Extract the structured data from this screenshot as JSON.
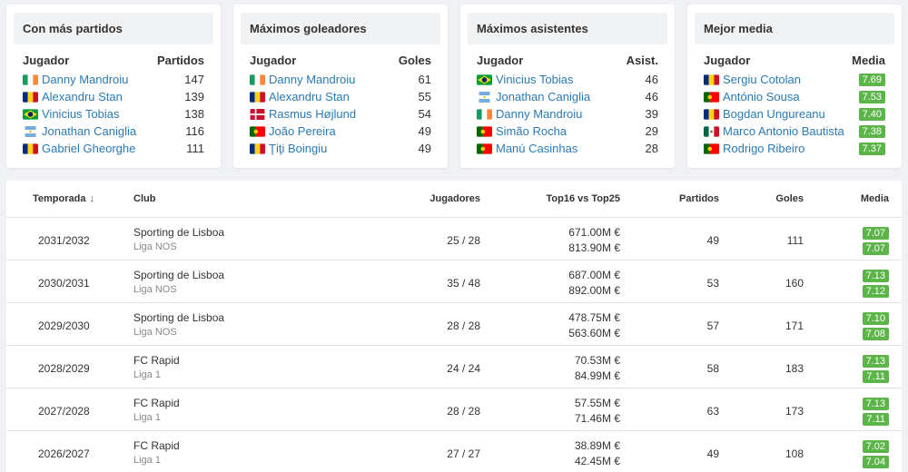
{
  "cards": [
    {
      "title": "Con más partidos",
      "col_left": "Jugador",
      "col_right": "Partidos",
      "value_type": "plain",
      "rows": [
        {
          "flag": "ireland-flag",
          "name": "Danny Mandroiu",
          "value": "147"
        },
        {
          "flag": "romania-flag",
          "name": "Alexandru Stan",
          "value": "139"
        },
        {
          "flag": "brazil-flag",
          "name": "Vinicius Tobias",
          "value": "138"
        },
        {
          "flag": "argentina-flag",
          "name": "Jonathan Caniglia",
          "value": "116"
        },
        {
          "flag": "romania-flag",
          "name": "Gabriel Gheorghe",
          "value": "111"
        }
      ]
    },
    {
      "title": "Máximos goleadores",
      "col_left": "Jugador",
      "col_right": "Goles",
      "value_type": "plain",
      "rows": [
        {
          "flag": "ireland-flag",
          "name": "Danny Mandroiu",
          "value": "61"
        },
        {
          "flag": "romania-flag",
          "name": "Alexandru Stan",
          "value": "55"
        },
        {
          "flag": "denmark-flag",
          "name": "Rasmus Højlund",
          "value": "54"
        },
        {
          "flag": "portugal-flag",
          "name": "João Pereira",
          "value": "49"
        },
        {
          "flag": "romania-flag",
          "name": "Ţiţi Boingiu",
          "value": "49"
        }
      ]
    },
    {
      "title": "Máximos asistentes",
      "col_left": "Jugador",
      "col_right": "Asist.",
      "value_type": "plain",
      "rows": [
        {
          "flag": "brazil-flag",
          "name": "Vinicius Tobias",
          "value": "46"
        },
        {
          "flag": "argentina-flag",
          "name": "Jonathan Caniglia",
          "value": "46"
        },
        {
          "flag": "ireland-flag",
          "name": "Danny Mandroiu",
          "value": "39"
        },
        {
          "flag": "portugal-flag",
          "name": "Simão Rocha",
          "value": "29"
        },
        {
          "flag": "portugal-flag",
          "name": "Manú Casinhas",
          "value": "28"
        }
      ]
    },
    {
      "title": "Mejor media",
      "col_left": "Jugador",
      "col_right": "Media",
      "value_type": "badge",
      "rows": [
        {
          "flag": "romania-flag",
          "name": "Sergiu Cotolan",
          "value": "7.69"
        },
        {
          "flag": "portugal-flag",
          "name": "António Sousa",
          "value": "7.53"
        },
        {
          "flag": "romania-flag",
          "name": "Bogdan Ungureanu",
          "value": "7.40"
        },
        {
          "flag": "mexico-flag",
          "name": "Marco Antonio Bautista",
          "value": "7.38"
        },
        {
          "flag": "portugal-flag",
          "name": "Rodrigo Ribeiro",
          "value": "7.37"
        }
      ]
    }
  ],
  "table": {
    "headers": {
      "season": "Temporada",
      "club": "Club",
      "players": "Jugadores",
      "top": "Top16 vs Top25",
      "matches": "Partidos",
      "goals": "Goles",
      "rating": "Media"
    },
    "sort_icon": "arrow-down-icon",
    "rows": [
      {
        "season": "2031/2032",
        "club": "Sporting de Lisboa",
        "league": "Liga NOS",
        "players": "25 / 28",
        "top16": "671.00M €",
        "top25": "813.90M €",
        "matches": "49",
        "goals": "111",
        "rating1": "7.07",
        "rating2": "7.07"
      },
      {
        "season": "2030/2031",
        "club": "Sporting de Lisboa",
        "league": "Liga NOS",
        "players": "35 / 48",
        "top16": "687.00M €",
        "top25": "892.00M €",
        "matches": "53",
        "goals": "160",
        "rating1": "7.13",
        "rating2": "7.12"
      },
      {
        "season": "2029/2030",
        "club": "Sporting de Lisboa",
        "league": "Liga NOS",
        "players": "28 / 28",
        "top16": "478.75M €",
        "top25": "563.60M €",
        "matches": "57",
        "goals": "171",
        "rating1": "7.10",
        "rating2": "7.08"
      },
      {
        "season": "2028/2029",
        "club": "FC Rapid",
        "league": "Liga 1",
        "players": "24 / 24",
        "top16": "70.53M €",
        "top25": "84.99M €",
        "matches": "58",
        "goals": "183",
        "rating1": "7.13",
        "rating2": "7.11"
      },
      {
        "season": "2027/2028",
        "club": "FC Rapid",
        "league": "Liga 1",
        "players": "28 / 28",
        "top16": "57.55M €",
        "top25": "71.46M €",
        "matches": "63",
        "goals": "173",
        "rating1": "7.13",
        "rating2": "7.11"
      },
      {
        "season": "2026/2027",
        "club": "FC Rapid",
        "league": "Liga 1",
        "players": "27 / 27",
        "top16": "38.89M €",
        "top25": "42.45M €",
        "matches": "49",
        "goals": "108",
        "rating1": "7.02",
        "rating2": "7.04"
      }
    ]
  },
  "colors": {
    "link": "#2a7ab4",
    "badge": "#5cb548",
    "background": "#f0f1f4"
  }
}
